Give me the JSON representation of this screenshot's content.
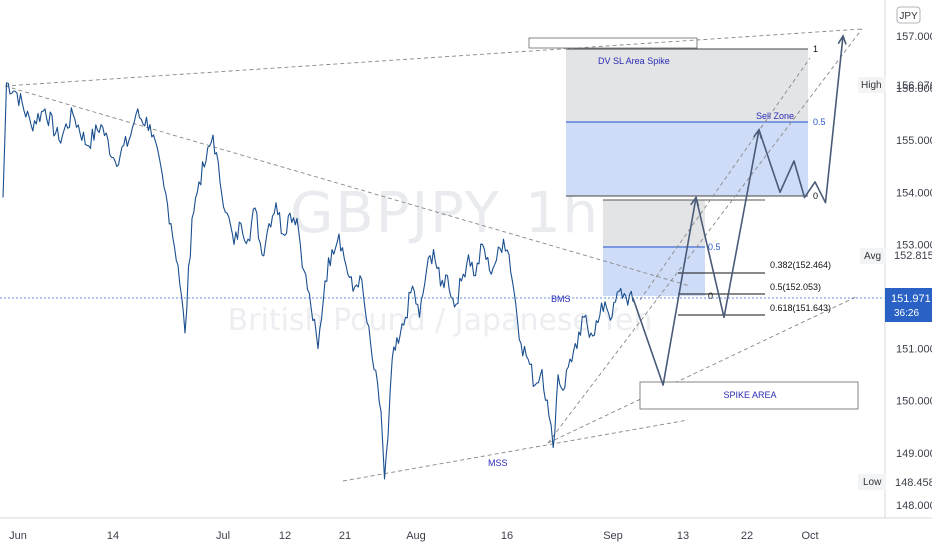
{
  "chart_data": {
    "type": "line",
    "symbol": "GBPJPY",
    "interval": "1h",
    "description": "British Pound / Japanese Yen",
    "currency": "JPY",
    "x_ticks": [
      "Jun",
      "14",
      "Jul",
      "12",
      "21",
      "Aug",
      "16",
      "Sep",
      "13",
      "22",
      "Oct"
    ],
    "y_ticks": [
      "157.000",
      "156.000",
      "155.000",
      "154.000",
      "153.000",
      "151.000",
      "150.000",
      "149.000",
      "148.000"
    ],
    "ylim": [
      147.6,
      157.5
    ],
    "current_price": "151.971",
    "countdown": "36:26",
    "high": {
      "label": "High",
      "value": "156.076"
    },
    "avg": {
      "label": "Avg",
      "value": "152.815"
    },
    "low": {
      "label": "Low",
      "value": "148.458"
    },
    "fib_levels": [
      {
        "text": "0.382(152.464)",
        "value": 152.464
      },
      {
        "text": "0.5(152.053)",
        "value": 152.053
      },
      {
        "text": "0.618(151.643)",
        "value": 151.643
      }
    ],
    "zone_levels": {
      "upper_one": "1",
      "upper_half": "0.5",
      "upper_zero": "0",
      "lower_half": "0.5",
      "lower_zero": "0"
    },
    "annotations": {
      "dv_sl": "DV SL Area Spike",
      "sell_zone": "Sell Zone",
      "bms": "BMS",
      "mss": "MSS",
      "spike_area": "SPIKE AREA"
    },
    "price_series": [
      {
        "t": 0,
        "p": 153.9
      },
      {
        "t": 0.5,
        "p": 156.1
      },
      {
        "t": 2,
        "p": 155.9
      },
      {
        "t": 4,
        "p": 155.3
      },
      {
        "t": 6,
        "p": 155.6
      },
      {
        "t": 8,
        "p": 155.0
      },
      {
        "t": 10,
        "p": 155.5
      },
      {
        "t": 12,
        "p": 154.9
      },
      {
        "t": 14,
        "p": 155.3
      },
      {
        "t": 16,
        "p": 154.6
      },
      {
        "t": 18,
        "p": 155.0
      },
      {
        "t": 19,
        "p": 155.5
      },
      {
        "t": 21,
        "p": 155.3
      },
      {
        "t": 23,
        "p": 154.1
      },
      {
        "t": 24,
        "p": 153.4
      },
      {
        "t": 25,
        "p": 152.6
      },
      {
        "t": 26,
        "p": 151.3
      },
      {
        "t": 27,
        "p": 153.5
      },
      {
        "t": 28,
        "p": 154.2
      },
      {
        "t": 29,
        "p": 154.6
      },
      {
        "t": 30,
        "p": 155.1
      },
      {
        "t": 31,
        "p": 154.2
      },
      {
        "t": 32,
        "p": 153.6
      },
      {
        "t": 33,
        "p": 153.0
      },
      {
        "t": 34,
        "p": 153.4
      },
      {
        "t": 35,
        "p": 153.1
      },
      {
        "t": 36,
        "p": 153.7
      },
      {
        "t": 37,
        "p": 152.8
      },
      {
        "t": 38,
        "p": 153.4
      },
      {
        "t": 39,
        "p": 153.8
      },
      {
        "t": 40,
        "p": 153.2
      },
      {
        "t": 41,
        "p": 153.6
      },
      {
        "t": 42,
        "p": 153.5
      },
      {
        "t": 43,
        "p": 152.5
      },
      {
        "t": 44,
        "p": 151.8
      },
      {
        "t": 45,
        "p": 151.0
      },
      {
        "t": 46,
        "p": 152.3
      },
      {
        "t": 47,
        "p": 152.9
      },
      {
        "t": 48,
        "p": 153.2
      },
      {
        "t": 49,
        "p": 152.6
      },
      {
        "t": 50,
        "p": 152.1
      },
      {
        "t": 51,
        "p": 152.4
      },
      {
        "t": 52,
        "p": 151.5
      },
      {
        "t": 53,
        "p": 150.6
      },
      {
        "t": 54,
        "p": 149.8
      },
      {
        "t": 54.5,
        "p": 148.5
      },
      {
        "t": 55,
        "p": 149.3
      },
      {
        "t": 55.6,
        "p": 150.8
      },
      {
        "t": 56.5,
        "p": 151.1
      },
      {
        "t": 57.5,
        "p": 151.6
      },
      {
        "t": 58.5,
        "p": 152.2
      },
      {
        "t": 59.5,
        "p": 151.6
      },
      {
        "t": 60.5,
        "p": 152.5
      },
      {
        "t": 61.5,
        "p": 152.9
      },
      {
        "t": 62.5,
        "p": 152.2
      },
      {
        "t": 63.5,
        "p": 152.4
      },
      {
        "t": 64.5,
        "p": 151.8
      },
      {
        "t": 65.5,
        "p": 152.3
      },
      {
        "t": 66.5,
        "p": 152.8
      },
      {
        "t": 67.5,
        "p": 152.4
      },
      {
        "t": 68.5,
        "p": 153.0
      },
      {
        "t": 69.5,
        "p": 152.5
      },
      {
        "t": 70.5,
        "p": 152.7
      },
      {
        "t": 71.5,
        "p": 153.1
      },
      {
        "t": 72.3,
        "p": 152.8
      },
      {
        "t": 73,
        "p": 152.1
      },
      {
        "t": 74,
        "p": 151.1
      },
      {
        "t": 75,
        "p": 150.8
      },
      {
        "t": 76,
        "p": 150.3
      },
      {
        "t": 77,
        "p": 150.6
      },
      {
        "t": 78,
        "p": 149.7
      },
      {
        "t": 78.6,
        "p": 149.1
      },
      {
        "t": 79.3,
        "p": 150.5
      },
      {
        "t": 80,
        "p": 150.2
      },
      {
        "t": 81,
        "p": 150.8
      },
      {
        "t": 82,
        "p": 151.0
      },
      {
        "t": 83,
        "p": 151.6
      },
      {
        "t": 84,
        "p": 151.3
      },
      {
        "t": 85,
        "p": 151.5
      },
      {
        "t": 86,
        "p": 151.9
      },
      {
        "t": 87,
        "p": 151.6
      },
      {
        "t": 88,
        "p": 152.1
      },
      {
        "t": 89,
        "p": 152.0
      },
      {
        "t": 90,
        "p": 151.9
      }
    ],
    "projection_path": [
      {
        "t": 90,
        "p": 151.97
      },
      {
        "t": 94.3,
        "p": 150.3
      },
      {
        "t": 99,
        "p": 153.9
      },
      {
        "t": 103,
        "p": 151.6
      },
      {
        "t": 108,
        "p": 155.2
      },
      {
        "t": 111,
        "p": 154.0
      },
      {
        "t": 113,
        "p": 154.6
      },
      {
        "t": 114.5,
        "p": 153.9
      },
      {
        "t": 116,
        "p": 154.2
      },
      {
        "t": 117.5,
        "p": 153.8
      },
      {
        "t": 120,
        "p": 157.0
      }
    ]
  }
}
